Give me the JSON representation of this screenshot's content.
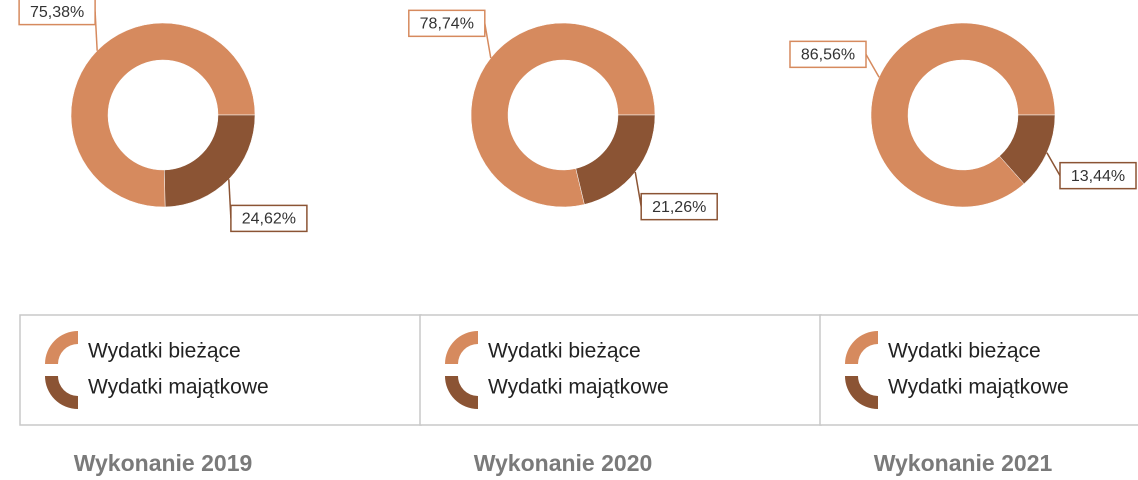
{
  "chart_data": [
    {
      "type": "donut",
      "title": "Wykonanie 2019",
      "categories": [
        "Wydatki bieżące",
        "Wydatki majątkowe"
      ],
      "values": [
        75.38,
        24.62
      ],
      "value_labels": [
        "75,38%",
        "24,62%"
      ],
      "colors": [
        "#d68a5e",
        "#8b5434"
      ]
    },
    {
      "type": "donut",
      "title": "Wykonanie 2020",
      "categories": [
        "Wydatki bieżące",
        "Wydatki majątkowe"
      ],
      "values": [
        78.74,
        21.26
      ],
      "value_labels": [
        "78,74%",
        "21,26%"
      ],
      "colors": [
        "#d68a5e",
        "#8b5434"
      ]
    },
    {
      "type": "donut",
      "title": "Wykonanie 2021",
      "categories": [
        "Wydatki bieżące",
        "Wydatki majątkowe"
      ],
      "values": [
        86.56,
        13.44
      ],
      "value_labels": [
        "86,56%",
        "13,44%"
      ],
      "colors": [
        "#d68a5e",
        "#8b5434"
      ]
    }
  ]
}
